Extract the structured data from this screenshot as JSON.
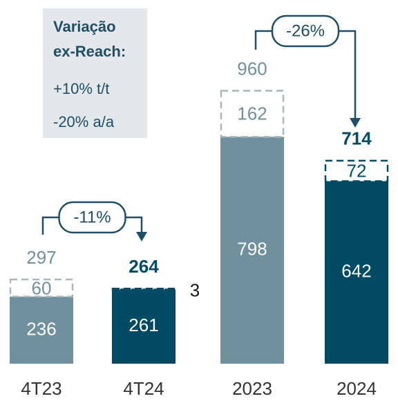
{
  "chart_data": {
    "type": "stacked_bar",
    "categories": [
      "4T23",
      "4T24",
      "2023",
      "2024"
    ],
    "colors": [
      "#6f909c",
      "#004a63",
      "#6f909c",
      "#004a63"
    ],
    "series": [
      {
        "values": [
          236,
          261,
          798,
          642
        ]
      },
      {
        "values": [
          60,
          3,
          162,
          72
        ]
      }
    ],
    "totals": [
      297,
      264,
      960,
      714
    ],
    "annotations": [
      {
        "text": "-11%",
        "from": 0,
        "to": 1
      },
      {
        "text": "-26%",
        "from": 2,
        "to": 3
      }
    ],
    "callout": {
      "title": [
        "Variação",
        "ex-Reach:"
      ],
      "lines": [
        "+10% t/t",
        "-20% a/a"
      ]
    }
  }
}
